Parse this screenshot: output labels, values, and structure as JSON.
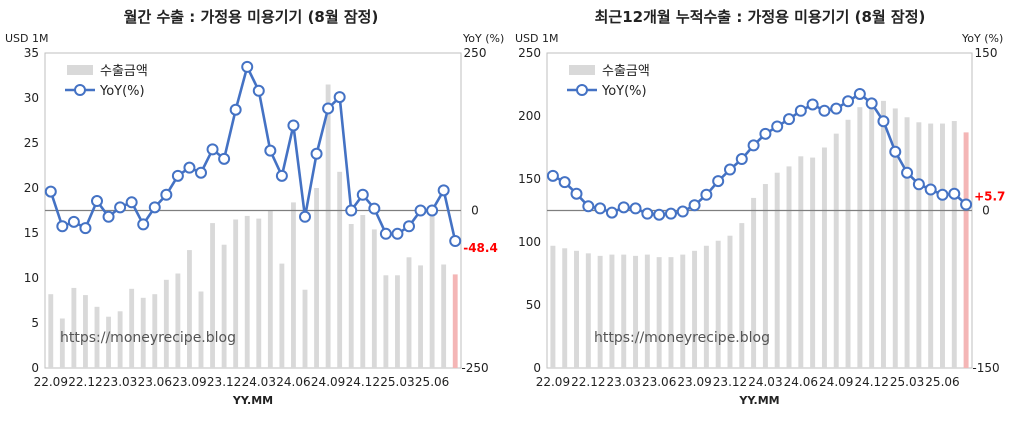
{
  "chart_data": [
    {
      "type": "bar",
      "title": "월간 수출 : 가정용 미용기기 (8월 잠정)",
      "xlabel": "YY.MM",
      "y_unit_left": "USD 1M",
      "y_unit_right": "YoY (%)",
      "ylim": [
        0,
        35
      ],
      "yticks": [
        0,
        5,
        10,
        15,
        20,
        25,
        30,
        35
      ],
      "y2lim": [
        -250,
        250
      ],
      "y2ticks": [
        -250,
        0,
        250
      ],
      "y2tick_labels": [
        "-250",
        "0",
        "250"
      ],
      "xtick_labels": [
        "22.09",
        "22.12",
        "23.03",
        "23.06",
        "23.09",
        "23.12",
        "24.03",
        "24.06",
        "24.09",
        "24.12",
        "25.03",
        "25.06"
      ],
      "xtick_index": [
        0,
        3,
        6,
        9,
        12,
        15,
        18,
        21,
        24,
        27,
        30,
        33
      ],
      "legend": [
        "수출금액",
        "YoY(%)"
      ],
      "legend_position": "top-left",
      "annotation": "-48.4",
      "watermark": "https://moneyrecipe.blog",
      "series": [
        {
          "name": "수출금액",
          "kind": "bar",
          "axis": "left",
          "values": [
            8.2,
            5.5,
            8.9,
            8.1,
            6.8,
            5.7,
            6.3,
            8.8,
            7.8,
            8.2,
            9.8,
            10.5,
            13.1,
            8.5,
            16.1,
            13.7,
            16.5,
            16.9,
            16.6,
            17.5,
            11.6,
            18.4,
            8.7,
            20.0,
            31.5,
            21.8,
            16.0,
            17.0,
            15.4,
            10.3,
            10.3,
            12.3,
            11.4,
            16.9,
            11.5,
            10.4
          ]
        },
        {
          "name": "YoY(%)",
          "kind": "line",
          "axis": "right",
          "values": [
            30,
            -25,
            -18,
            -28,
            15,
            -10,
            5,
            13,
            -22,
            5,
            25,
            55,
            68,
            60,
            97,
            82,
            160,
            228,
            190,
            95,
            55,
            135,
            -10,
            90,
            162,
            180,
            0,
            25,
            3,
            -37,
            -37,
            -25,
            0,
            0,
            32,
            -48.4
          ]
        }
      ]
    },
    {
      "type": "bar",
      "title": "최근12개월 누적수출 : 가정용 미용기기 (8월 잠정)",
      "xlabel": "YY.MM",
      "y_unit_left": "USD 1M",
      "y_unit_right": "YoY (%)",
      "ylim": [
        0,
        250
      ],
      "yticks": [
        0,
        50,
        100,
        150,
        200,
        250
      ],
      "y2lim": [
        -150,
        150
      ],
      "y2ticks": [
        -150,
        0,
        150
      ],
      "y2tick_labels": [
        "-150",
        "0",
        "150"
      ],
      "xtick_labels": [
        "22.09",
        "22.12",
        "23.03",
        "23.06",
        "23.09",
        "23.12",
        "24.03",
        "24.06",
        "24.09",
        "24.12",
        "25.03",
        "25.06"
      ],
      "xtick_index": [
        0,
        3,
        6,
        9,
        12,
        15,
        18,
        21,
        24,
        27,
        30,
        33
      ],
      "legend": [
        "수출금액",
        "YoY(%)"
      ],
      "legend_position": "top-left",
      "annotation": "+5.7",
      "watermark": "https://moneyrecipe.blog",
      "series": [
        {
          "name": "수출금액",
          "kind": "bar",
          "axis": "left",
          "values": [
            97,
            95,
            93,
            91,
            89,
            90,
            90,
            89,
            90,
            88,
            88,
            90,
            93,
            97,
            101,
            105,
            115,
            135,
            146,
            155,
            160,
            168,
            167,
            175,
            186,
            197,
            207,
            211,
            212,
            206,
            199,
            195,
            194,
            194,
            196,
            187
          ]
        },
        {
          "name": "YoY(%)",
          "kind": "line",
          "axis": "right",
          "values": [
            33,
            27,
            16,
            4,
            2,
            -2,
            3,
            2,
            -3,
            -4,
            -3,
            -1,
            5,
            15,
            28,
            39,
            49,
            62,
            73,
            80,
            87,
            95,
            101,
            95,
            97,
            104,
            111,
            102,
            85,
            56,
            36,
            25,
            20,
            15,
            16,
            5.7
          ]
        }
      ]
    }
  ]
}
